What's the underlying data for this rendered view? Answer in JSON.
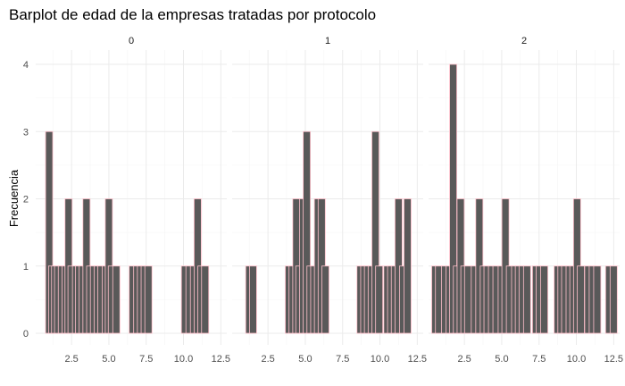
{
  "chart_data": {
    "type": "bar",
    "title": "Barplot de edad de la empresas tratadas por protocolo",
    "xlabel": "",
    "ylabel": "Frecuencia",
    "xlim": [
      0.1,
      12.9
    ],
    "ylim": [
      0,
      4
    ],
    "xticks": [
      "2.5",
      "5.0",
      "7.5",
      "10.0",
      "12.5"
    ],
    "yticks": [
      "0",
      "1",
      "2",
      "3",
      "4"
    ],
    "grid": true,
    "bar_fill": "#595959",
    "bar_outline": "#ffc0cb",
    "background": "#ffffff",
    "facets": [
      {
        "label": "0",
        "bars": [
          [
            1.0,
            3
          ],
          [
            1.2,
            1
          ],
          [
            1.4,
            1
          ],
          [
            1.6,
            1
          ],
          [
            1.85,
            1
          ],
          [
            2.1,
            1
          ],
          [
            2.3,
            2
          ],
          [
            2.5,
            1
          ],
          [
            2.8,
            1
          ],
          [
            3.0,
            1
          ],
          [
            3.25,
            1
          ],
          [
            3.5,
            2
          ],
          [
            3.75,
            1
          ],
          [
            4.0,
            1
          ],
          [
            4.25,
            1
          ],
          [
            4.5,
            1
          ],
          [
            4.8,
            1
          ],
          [
            5.0,
            2
          ],
          [
            5.2,
            1
          ],
          [
            5.5,
            1
          ],
          [
            6.6,
            1
          ],
          [
            6.9,
            1
          ],
          [
            7.15,
            1
          ],
          [
            7.4,
            1
          ],
          [
            7.65,
            1
          ],
          [
            10.1,
            1
          ],
          [
            10.4,
            1
          ],
          [
            10.7,
            1
          ],
          [
            10.95,
            2
          ],
          [
            11.2,
            1
          ],
          [
            11.45,
            1
          ]
        ]
      },
      {
        "label": "1",
        "bars": [
          [
            1.25,
            1
          ],
          [
            1.5,
            1
          ],
          [
            3.9,
            1
          ],
          [
            4.15,
            1
          ],
          [
            4.4,
            2
          ],
          [
            4.6,
            1
          ],
          [
            4.85,
            2
          ],
          [
            5.1,
            3
          ],
          [
            5.35,
            1
          ],
          [
            5.6,
            1
          ],
          [
            5.85,
            2
          ],
          [
            6.1,
            2
          ],
          [
            6.35,
            1
          ],
          [
            8.7,
            1
          ],
          [
            8.95,
            1
          ],
          [
            9.2,
            1
          ],
          [
            9.45,
            1
          ],
          [
            9.7,
            3
          ],
          [
            9.95,
            1
          ],
          [
            10.5,
            1
          ],
          [
            10.75,
            1
          ],
          [
            11.0,
            1
          ],
          [
            11.25,
            2
          ],
          [
            11.55,
            1
          ],
          [
            11.85,
            2
          ]
        ]
      },
      {
        "label": "2",
        "bars": [
          [
            0.55,
            1
          ],
          [
            0.8,
            1
          ],
          [
            1.2,
            1
          ],
          [
            1.5,
            1
          ],
          [
            1.75,
            4
          ],
          [
            2.0,
            1
          ],
          [
            2.25,
            2
          ],
          [
            2.5,
            1
          ],
          [
            2.75,
            1
          ],
          [
            3.2,
            1
          ],
          [
            3.5,
            2
          ],
          [
            3.8,
            1
          ],
          [
            4.05,
            1
          ],
          [
            4.35,
            1
          ],
          [
            4.65,
            1
          ],
          [
            5.0,
            1
          ],
          [
            5.25,
            2
          ],
          [
            5.55,
            1
          ],
          [
            5.9,
            1
          ],
          [
            6.15,
            1
          ],
          [
            6.4,
            1
          ],
          [
            6.7,
            1
          ],
          [
            7.3,
            1
          ],
          [
            7.55,
            1
          ],
          [
            7.85,
            1
          ],
          [
            8.75,
            1
          ],
          [
            9.0,
            1
          ],
          [
            9.25,
            1
          ],
          [
            9.55,
            1
          ],
          [
            9.8,
            1
          ],
          [
            10.05,
            2
          ],
          [
            10.3,
            1
          ],
          [
            10.8,
            1
          ],
          [
            11.1,
            1
          ],
          [
            11.4,
            1
          ],
          [
            12.2,
            1
          ],
          [
            12.5,
            1
          ]
        ]
      }
    ]
  }
}
